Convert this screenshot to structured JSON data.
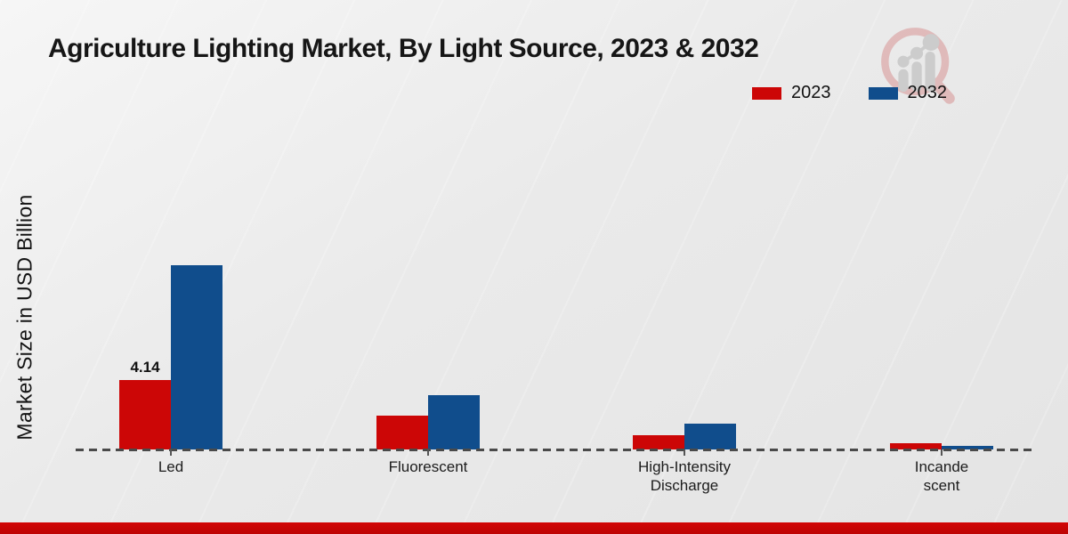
{
  "page": {
    "footer_color": "#c40404"
  },
  "watermark": {
    "icon": "magnifier-growth-chart-logo",
    "ring_color": "#dfb6b6",
    "glyph_color": "#c9c9c9"
  },
  "chart_data": {
    "type": "bar",
    "title": "Agriculture Lighting Market, By Light Source, 2023 & 2032",
    "ylabel": "Market Size in USD Billion",
    "xlabel": "",
    "categories": [
      "Led",
      "Fluorescent",
      "High-Intensity\nDischarge",
      "Incande\nscent"
    ],
    "series": [
      {
        "name": "2023",
        "color": "#cc0606",
        "values": [
          4.14,
          2.0,
          0.85,
          0.37
        ]
      },
      {
        "name": "2032",
        "color": "#104d8c",
        "values": [
          11.0,
          3.25,
          1.55,
          0.2
        ]
      }
    ],
    "bar_labels": [
      {
        "series": "2023",
        "category_index": 0,
        "text": "4.14"
      }
    ],
    "ylim": [
      0,
      12
    ],
    "grid": false,
    "baseline_style": "dashed",
    "legend_position": "top-right"
  }
}
